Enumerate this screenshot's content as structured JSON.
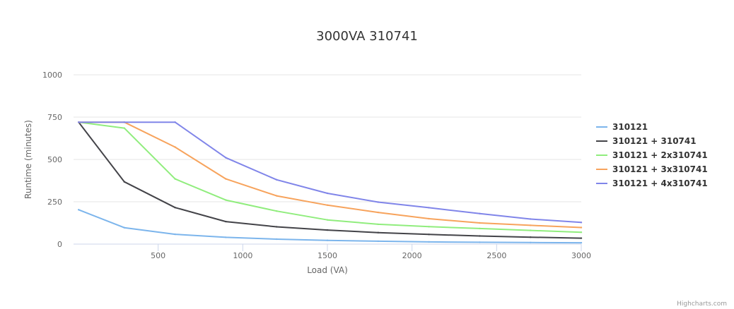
{
  "chart_data": {
    "type": "line",
    "title": "3000VA 310741",
    "xlabel": "Load (VA)",
    "ylabel": "Runtime (minutes)",
    "xlim": [
      0,
      3000
    ],
    "ylim": [
      0,
      1000
    ],
    "x_ticks": [
      "500",
      "1000",
      "1500",
      "2000",
      "2500",
      "3000"
    ],
    "y_ticks": [
      "0",
      "250",
      "500",
      "750",
      "1000"
    ],
    "grid": true,
    "legend_position": "right",
    "x": [
      30,
      300,
      600,
      900,
      1200,
      1500,
      1800,
      2100,
      2400,
      2700,
      3000
    ],
    "series": [
      {
        "name": "310121",
        "color": "#7cb5ec",
        "values": [
          203,
          97,
          58,
          40,
          29,
          22,
          17,
          13,
          11,
          9,
          8
        ]
      },
      {
        "name": "310121 + 310741",
        "color": "#434348",
        "values": [
          720,
          368,
          216,
          133,
          102,
          83,
          68,
          57,
          48,
          41,
          35
        ]
      },
      {
        "name": "310121 + 2x310741",
        "color": "#90ed7d",
        "values": [
          720,
          685,
          385,
          260,
          195,
          143,
          117,
          103,
          92,
          81,
          70
        ]
      },
      {
        "name": "310121 + 3x310741",
        "color": "#f7a35c",
        "values": [
          720,
          720,
          573,
          385,
          285,
          230,
          187,
          150,
          125,
          111,
          98
        ]
      },
      {
        "name": "310121 + 4x310741",
        "color": "#8085e9",
        "values": [
          720,
          720,
          720,
          510,
          380,
          300,
          248,
          215,
          180,
          148,
          128
        ]
      }
    ]
  },
  "credits": "Highcharts.com"
}
